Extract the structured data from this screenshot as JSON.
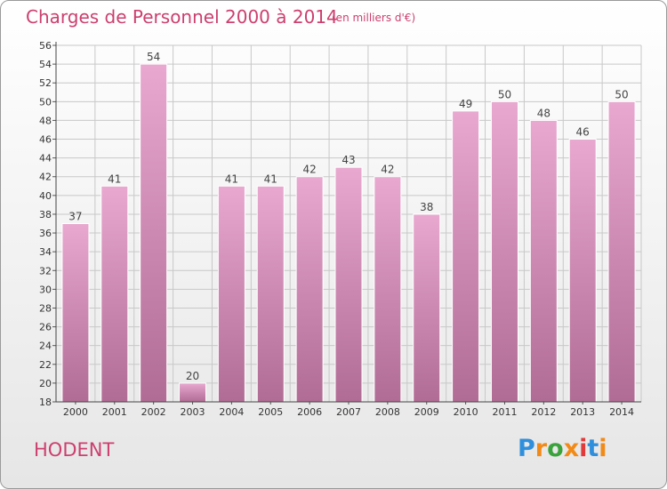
{
  "header": {
    "title": "Charges de Personnel 2000 à 2014",
    "subtitle": "(en milliers d'€)"
  },
  "footer": {
    "location": "HODENT",
    "logo_text": "Proxiti"
  },
  "colors": {
    "bar_top": "#e8a8d0",
    "bar_bottom": "#b06c94",
    "title": "#cc3f6f",
    "grid": "#c8c8c8",
    "logo": [
      "#2f8fdc",
      "#f28a18",
      "#3ba33b",
      "#f28a18",
      "#e23a3a",
      "#2f8fdc",
      "#f28a18"
    ]
  },
  "chart_data": {
    "type": "bar",
    "title": "Charges de Personnel 2000 à 2014",
    "subtitle": "(en milliers d'€)",
    "categories": [
      "2000",
      "2001",
      "2002",
      "2003",
      "2004",
      "2005",
      "2006",
      "2007",
      "2008",
      "2009",
      "2010",
      "2011",
      "2012",
      "2013",
      "2014"
    ],
    "values": [
      37,
      41,
      54,
      20,
      41,
      41,
      42,
      43,
      42,
      38,
      49,
      50,
      48,
      46,
      50
    ],
    "ylim": [
      18,
      56
    ],
    "yticks": [
      18,
      20,
      22,
      24,
      26,
      28,
      30,
      32,
      34,
      36,
      38,
      40,
      42,
      44,
      46,
      48,
      50,
      52,
      54,
      56
    ],
    "grid": true,
    "xlabel": "",
    "ylabel": ""
  }
}
